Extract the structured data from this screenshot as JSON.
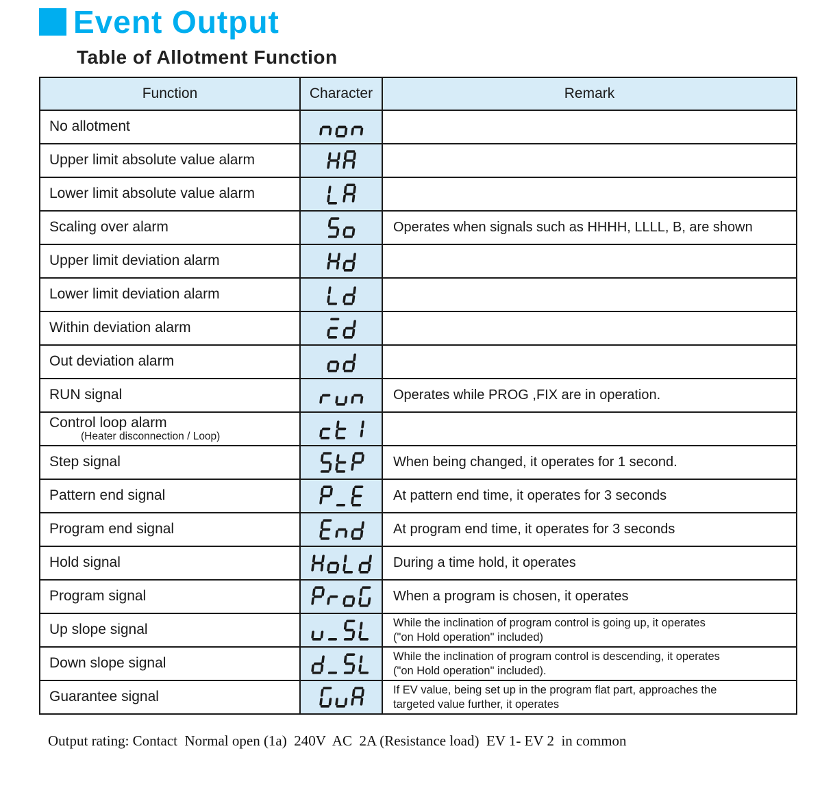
{
  "title": "Event Output",
  "subtitle": "Table of Allotment Function",
  "colors": {
    "accent": "#00aeef",
    "header_bg": "#d7ecf8",
    "char_bg": "#d5eaf7",
    "segment": "#1b1b1b"
  },
  "table": {
    "columns": [
      "Function",
      "Character",
      "Remark"
    ],
    "rows": [
      {
        "function": "No allotment",
        "character": "non",
        "segments": [
          "n",
          "o",
          "n"
        ],
        "remark_lines": []
      },
      {
        "function": "Upper limit absolute value alarm",
        "character": "HA",
        "segments": [
          "H",
          "A"
        ],
        "remark_lines": []
      },
      {
        "function": "Lower limit absolute value alarm",
        "character": "LA",
        "segments": [
          "L",
          "A"
        ],
        "remark_lines": []
      },
      {
        "function": "Scaling over alarm",
        "character": "So",
        "segments": [
          "S",
          "o"
        ],
        "remark_lines": [
          "Operates when signals such as HHHH, LLLL, B, are shown"
        ]
      },
      {
        "function": "Upper limit deviation alarm",
        "character": "Hd",
        "segments": [
          "H",
          "d"
        ],
        "remark_lines": []
      },
      {
        "function": "Lower limit deviation alarm",
        "character": "Ld",
        "segments": [
          "L",
          "d"
        ],
        "remark_lines": []
      },
      {
        "function": "Within deviation alarm",
        "character": "Cd",
        "segments": [
          "C",
          "d"
        ],
        "remark_lines": []
      },
      {
        "function": "Out deviation alarm",
        "character": "od",
        "segments": [
          "o",
          "d"
        ],
        "remark_lines": []
      },
      {
        "function": "RUN signal",
        "character": "run",
        "segments": [
          "r",
          "u",
          "n"
        ],
        "remark_lines": [
          "Operates while PROG ,FIX are in operation."
        ]
      },
      {
        "function": "Control loop alarm",
        "function_sub": "(Heater disconnection / Loop)",
        "character": "ct1",
        "segments": [
          "c",
          "t",
          "1"
        ],
        "remark_lines": []
      },
      {
        "function": "Step signal",
        "character": "StP",
        "segments": [
          "S",
          "t",
          "P"
        ],
        "remark_lines": [
          "When being changed, it operates for 1 second."
        ]
      },
      {
        "function": "Pattern end signal",
        "character": "P_E",
        "segments": [
          "P",
          "_",
          "E"
        ],
        "remark_lines": [
          "At pattern end time, it operates for 3 seconds"
        ]
      },
      {
        "function": "Program end signal",
        "character": "End",
        "segments": [
          "E",
          "n",
          "d"
        ],
        "remark_lines": [
          "At program end time, it operates for 3 seconds"
        ]
      },
      {
        "function": "Hold signal",
        "character": "HoLd",
        "segments": [
          "H",
          "o",
          "L",
          "d"
        ],
        "remark_lines": [
          "During a time hold, it operates"
        ]
      },
      {
        "function": "Program signal",
        "character": "ProG",
        "segments": [
          "P",
          "r",
          "o",
          "G"
        ],
        "remark_lines": [
          "When a program is chosen, it operates"
        ]
      },
      {
        "function": "Up slope signal",
        "character": "u_SL",
        "segments": [
          "u",
          "_",
          "S",
          "L"
        ],
        "remark_lines": [
          "While the inclination of program control is going up, it operates",
          "(\"on Hold operation\" included)"
        ]
      },
      {
        "function": "Down slope signal",
        "character": "d_SL",
        "segments": [
          "d",
          "_",
          "S",
          "L"
        ],
        "remark_lines": [
          "While the inclination of program control is descending, it operates",
          "(\"on Hold operation\" included)."
        ]
      },
      {
        "function": "Guarantee signal",
        "character": "GuA",
        "segments": [
          "G",
          "u",
          "A"
        ],
        "remark_lines": [
          "If  EV value, being set up in the program flat part, approaches the",
          "targeted value further, it operates"
        ]
      }
    ]
  },
  "footer": "Output rating: Contact  Normal open (1a)  240V  AC  2A (Resistance load)  EV 1- EV 2  in common"
}
